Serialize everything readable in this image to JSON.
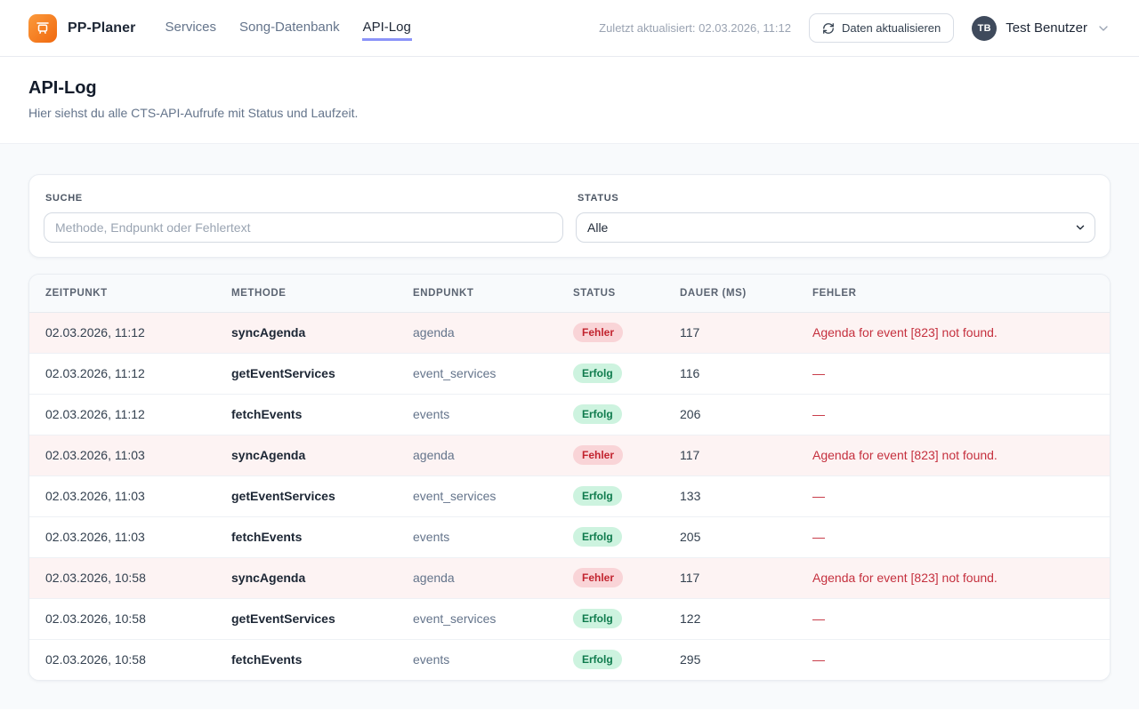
{
  "header": {
    "brand": "PP-Planer",
    "nav": [
      {
        "label": "Services",
        "active": false
      },
      {
        "label": "Song-Datenbank",
        "active": false
      },
      {
        "label": "API-Log",
        "active": true
      }
    ],
    "last_updated": "Zuletzt aktualisiert: 02.03.2026, 11:12",
    "refresh_button_label": "Daten aktualisieren",
    "user": {
      "initials": "TB",
      "name": "Test Benutzer"
    }
  },
  "page": {
    "title": "API-Log",
    "subtitle": "Hier siehst du alle CTS-API-Aufrufe mit Status und Laufzeit."
  },
  "filters": {
    "search_label": "Suche",
    "search_placeholder": "Methode, Endpunkt oder Fehlertext",
    "search_value": "",
    "status_label": "Status",
    "status_value": "Alle"
  },
  "table": {
    "columns": [
      "Zeitpunkt",
      "Methode",
      "Endpunkt",
      "Status",
      "Dauer (ms)",
      "Fehler"
    ],
    "rows": [
      {
        "zeitpunkt": "02.03.2026, 11:12",
        "methode": "syncAgenda",
        "endpunkt": "agenda",
        "status": "Fehler",
        "dauer": "117",
        "fehler": "Agenda for event [823] not found."
      },
      {
        "zeitpunkt": "02.03.2026, 11:12",
        "methode": "getEventServices",
        "endpunkt": "event_services",
        "status": "Erfolg",
        "dauer": "116",
        "fehler": "—"
      },
      {
        "zeitpunkt": "02.03.2026, 11:12",
        "methode": "fetchEvents",
        "endpunkt": "events",
        "status": "Erfolg",
        "dauer": "206",
        "fehler": "—"
      },
      {
        "zeitpunkt": "02.03.2026, 11:03",
        "methode": "syncAgenda",
        "endpunkt": "agenda",
        "status": "Fehler",
        "dauer": "117",
        "fehler": "Agenda for event [823] not found."
      },
      {
        "zeitpunkt": "02.03.2026, 11:03",
        "methode": "getEventServices",
        "endpunkt": "event_services",
        "status": "Erfolg",
        "dauer": "133",
        "fehler": "—"
      },
      {
        "zeitpunkt": "02.03.2026, 11:03",
        "methode": "fetchEvents",
        "endpunkt": "events",
        "status": "Erfolg",
        "dauer": "205",
        "fehler": "—"
      },
      {
        "zeitpunkt": "02.03.2026, 10:58",
        "methode": "syncAgenda",
        "endpunkt": "agenda",
        "status": "Fehler",
        "dauer": "117",
        "fehler": "Agenda for event [823] not found."
      },
      {
        "zeitpunkt": "02.03.2026, 10:58",
        "methode": "getEventServices",
        "endpunkt": "event_services",
        "status": "Erfolg",
        "dauer": "122",
        "fehler": "—"
      },
      {
        "zeitpunkt": "02.03.2026, 10:58",
        "methode": "fetchEvents",
        "endpunkt": "events",
        "status": "Erfolg",
        "dauer": "295",
        "fehler": "—"
      }
    ],
    "status_error_label": "Fehler",
    "status_success_label": "Erfolg"
  },
  "colors": {
    "accent_orange": "#f0680e",
    "nav_active_underline": "#8b93f8",
    "error_text": "#c5303e",
    "error_badge_bg": "#f9d4d7",
    "success_badge_bg": "#cdf3df",
    "success_text": "#0f7b4d",
    "error_row_bg": "#fdf3f3",
    "page_bg": "#f8fafc"
  }
}
